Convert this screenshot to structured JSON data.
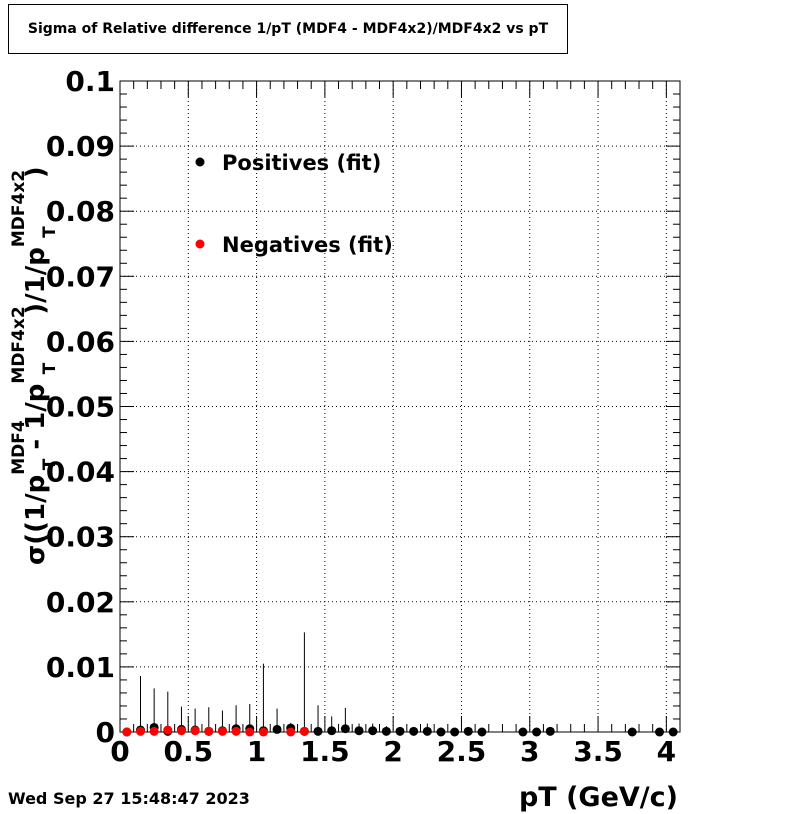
{
  "chart_data": {
    "type": "scatter",
    "title": "Sigma of Relative difference 1/pT (MDF4 - MDF4x2)/MDF4x2 vs pT",
    "xlabel": "pT (GeV/c)",
    "ylabel": "σ((1/p_T^MDF4 - 1/p_T^MDF4x2)/1/p_T^MDF4x2)",
    "xlim": [
      0,
      4.1
    ],
    "ylim": [
      0,
      0.1
    ],
    "x_ticks": [
      "0",
      "0.5",
      "1",
      "1.5",
      "2",
      "2.5",
      "3",
      "3.5",
      "4"
    ],
    "y_ticks": [
      "0",
      "0.01",
      "0.02",
      "0.03",
      "0.04",
      "0.05",
      "0.06",
      "0.07",
      "0.08",
      "0.09",
      "0.1"
    ],
    "grid": true,
    "legend_position": "top-left",
    "series": [
      {
        "name": "Positives (fit)",
        "color": "#000000",
        "points": [
          {
            "x": 0.05,
            "y": 0.0,
            "err": 0.0001
          },
          {
            "x": 0.15,
            "y": 0.0003,
            "err": 0.0083
          },
          {
            "x": 0.25,
            "y": 0.0007,
            "err": 0.006
          },
          {
            "x": 0.35,
            "y": 0.0001,
            "err": 0.0061
          },
          {
            "x": 0.45,
            "y": 0.0004,
            "err": 0.0035
          },
          {
            "x": 0.55,
            "y": 0.0003,
            "err": 0.0033
          },
          {
            "x": 0.65,
            "y": 0.0001,
            "err": 0.0037
          },
          {
            "x": 0.75,
            "y": 0.0002,
            "err": 0.0031
          },
          {
            "x": 0.85,
            "y": 0.0005,
            "err": 0.0036
          },
          {
            "x": 0.95,
            "y": 0.0005,
            "err": 0.0038
          },
          {
            "x": 1.05,
            "y": 0.0002,
            "err": 0.0103
          },
          {
            "x": 1.15,
            "y": 0.0004,
            "err": 0.0032
          },
          {
            "x": 1.25,
            "y": 0.0006,
            "err": 0.0008
          },
          {
            "x": 1.35,
            "y": 0.0001,
            "err": 0.0152
          },
          {
            "x": 1.45,
            "y": 0.0001,
            "err": 0.004
          },
          {
            "x": 1.55,
            "y": 0.0002,
            "err": 0.0022
          },
          {
            "x": 1.65,
            "y": 0.0005,
            "err": 0.0032
          },
          {
            "x": 1.75,
            "y": 0.0002,
            "err": 0.0011
          },
          {
            "x": 1.85,
            "y": 0.0002,
            "err": 0.0011
          },
          {
            "x": 1.95,
            "y": 0.0001,
            "err": 0.0008
          },
          {
            "x": 2.05,
            "y": 0.0001,
            "err": 0.0005
          },
          {
            "x": 2.15,
            "y": 0.0001,
            "err": 0.0005
          },
          {
            "x": 2.25,
            "y": 0.0001,
            "err": 0.0012
          },
          {
            "x": 2.35,
            "y": 0.0,
            "err": 0.0007
          },
          {
            "x": 2.45,
            "y": 0.0,
            "err": 0.0003
          },
          {
            "x": 2.55,
            "y": 0.0001,
            "err": 0.0004
          },
          {
            "x": 2.65,
            "y": 0.0,
            "err": 0.0003
          },
          {
            "x": 2.95,
            "y": 0.0,
            "err": 0.0004
          },
          {
            "x": 3.05,
            "y": 0.0,
            "err": 0.0004
          },
          {
            "x": 3.15,
            "y": 0.0001,
            "err": 0.0004
          },
          {
            "x": 3.75,
            "y": 0.0,
            "err": 0.0003
          },
          {
            "x": 3.95,
            "y": 0.0,
            "err": 0.0003
          },
          {
            "x": 4.05,
            "y": 0.0,
            "err": 0.0003
          }
        ]
      },
      {
        "name": "Negatives (fit)",
        "color": "#ff0000",
        "points": [
          {
            "x": 0.05,
            "y": 0.0,
            "err": 0.0001
          },
          {
            "x": 0.15,
            "y": 0.0001,
            "err": 0.0002
          },
          {
            "x": 0.25,
            "y": 0.0001,
            "err": 0.0002
          },
          {
            "x": 0.35,
            "y": 0.0003,
            "err": 0.0002
          },
          {
            "x": 0.45,
            "y": 0.0002,
            "err": 0.0002
          },
          {
            "x": 0.55,
            "y": 0.0002,
            "err": 0.0002
          },
          {
            "x": 0.65,
            "y": 0.0001,
            "err": 0.0002
          },
          {
            "x": 0.75,
            "y": 0.0001,
            "err": 0.0002
          },
          {
            "x": 0.85,
            "y": 0.0001,
            "err": 0.0002
          },
          {
            "x": 0.95,
            "y": 0.0,
            "err": 0.0002
          },
          {
            "x": 1.05,
            "y": 0.0,
            "err": 0.0002
          },
          {
            "x": 1.25,
            "y": 0.0,
            "err": 0.0002
          },
          {
            "x": 1.35,
            "y": 0.0001,
            "err": 0.0002
          }
        ]
      }
    ]
  },
  "footer": {
    "date": "Wed Sep 27 15:48:47 2023"
  },
  "colors": {
    "positives": "#000000",
    "negatives": "#ff0000",
    "frame": "#000000",
    "background": "#ffffff"
  }
}
